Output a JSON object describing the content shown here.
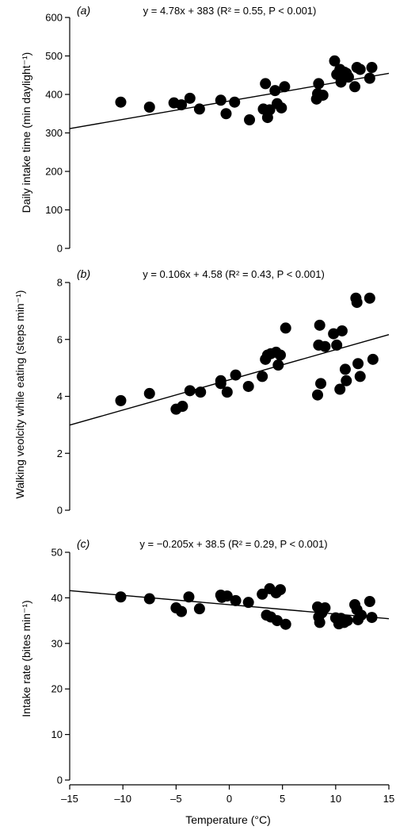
{
  "chart_data": [
    {
      "type": "scatter",
      "panel_label": "(a)",
      "equation": "y = 4.78x + 383 (R² = 0.55, P < 0.001)",
      "ylabel": "Daily intake time (min daylight⁻¹)",
      "xlim": [
        -15,
        15
      ],
      "ylim": [
        0,
        600
      ],
      "yticks": [
        "0",
        "100",
        "200",
        "300",
        "400",
        "500",
        "600"
      ],
      "regression": {
        "slope": 4.78,
        "intercept": 383
      },
      "x": [
        -10.2,
        -7.5,
        -5.2,
        -4.5,
        -3.7,
        -2.8,
        -0.8,
        -0.3,
        0.5,
        1.9,
        3.2,
        3.4,
        3.6,
        3.8,
        4.3,
        4.5,
        4.9,
        5.2,
        8.2,
        8.3,
        8.4,
        8.8,
        9.9,
        10.1,
        10.4,
        10.5,
        10.8,
        11.0,
        11.2,
        11.8,
        12.0,
        12.3,
        13.2,
        13.4
      ],
      "y": [
        380,
        367,
        378,
        373,
        390,
        362,
        385,
        350,
        380,
        334,
        362,
        428,
        340,
        360,
        410,
        376,
        365,
        420,
        388,
        402,
        428,
        398,
        487,
        452,
        465,
        432,
        458,
        455,
        445,
        420,
        470,
        465,
        442,
        470
      ]
    },
    {
      "type": "scatter",
      "panel_label": "(b)",
      "equation": "y = 0.106x + 4.58 (R² = 0.43, P < 0.001)",
      "ylabel": "Walking veolcity while eating (steps min⁻¹)",
      "xlim": [
        -15,
        15
      ],
      "ylim": [
        0,
        8
      ],
      "yticks": [
        "0",
        "2",
        "4",
        "6",
        "8"
      ],
      "regression": {
        "slope": 0.106,
        "intercept": 4.58
      },
      "x": [
        -10.2,
        -7.5,
        -5.0,
        -4.4,
        -3.7,
        -2.7,
        -0.8,
        -0.8,
        -0.2,
        0.6,
        1.8,
        3.1,
        3.4,
        3.6,
        3.9,
        4.4,
        4.6,
        4.8,
        5.3,
        8.3,
        8.4,
        8.5,
        8.6,
        9.0,
        9.8,
        10.1,
        10.4,
        10.6,
        10.9,
        11.0,
        11.9,
        12.0,
        12.1,
        12.3,
        13.2,
        13.5
      ],
      "y": [
        3.85,
        4.1,
        3.55,
        3.65,
        4.2,
        4.15,
        4.55,
        4.45,
        4.15,
        4.75,
        4.35,
        4.7,
        5.3,
        5.45,
        5.5,
        5.55,
        5.1,
        5.45,
        6.4,
        4.05,
        5.8,
        6.5,
        4.45,
        5.75,
        6.2,
        5.8,
        4.25,
        6.3,
        4.95,
        4.55,
        7.45,
        7.3,
        5.15,
        4.7,
        7.45,
        5.3
      ]
    },
    {
      "type": "scatter",
      "panel_label": "(c)",
      "equation": "y = −0.205x + 38.5 (R² = 0.29, P < 0.001)",
      "ylabel": "Intake rate (bites min⁻¹)",
      "xlabel": "Temperature (°C)",
      "xlim": [
        -15,
        15
      ],
      "ylim": [
        0,
        50
      ],
      "yticks": [
        "0",
        "10",
        "20",
        "30",
        "40",
        "50"
      ],
      "xticks": [
        "–15",
        "–10",
        "–5",
        "0",
        "5",
        "10",
        "15"
      ],
      "regression": {
        "slope": -0.205,
        "intercept": 38.5
      },
      "x": [
        -10.2,
        -7.5,
        -5.0,
        -4.5,
        -3.8,
        -2.8,
        -0.8,
        -0.7,
        -0.2,
        0.6,
        1.8,
        3.1,
        3.5,
        3.8,
        3.9,
        4.4,
        4.5,
        4.8,
        5.3,
        8.3,
        8.4,
        8.5,
        8.7,
        9.0,
        10.0,
        10.3,
        10.5,
        10.8,
        11.1,
        11.8,
        12.0,
        12.1,
        12.4,
        13.2,
        13.4
      ],
      "y": [
        40.2,
        39.8,
        37.8,
        37.0,
        40.2,
        37.6,
        40.6,
        40.1,
        40.4,
        39.4,
        39.0,
        40.8,
        36.2,
        42.0,
        35.8,
        41.1,
        35.0,
        41.8,
        34.2,
        38.0,
        35.8,
        34.6,
        36.7,
        37.8,
        35.6,
        34.3,
        35.5,
        34.6,
        35.0,
        38.5,
        37.4,
        35.2,
        36.2,
        39.2,
        35.7
      ]
    }
  ]
}
